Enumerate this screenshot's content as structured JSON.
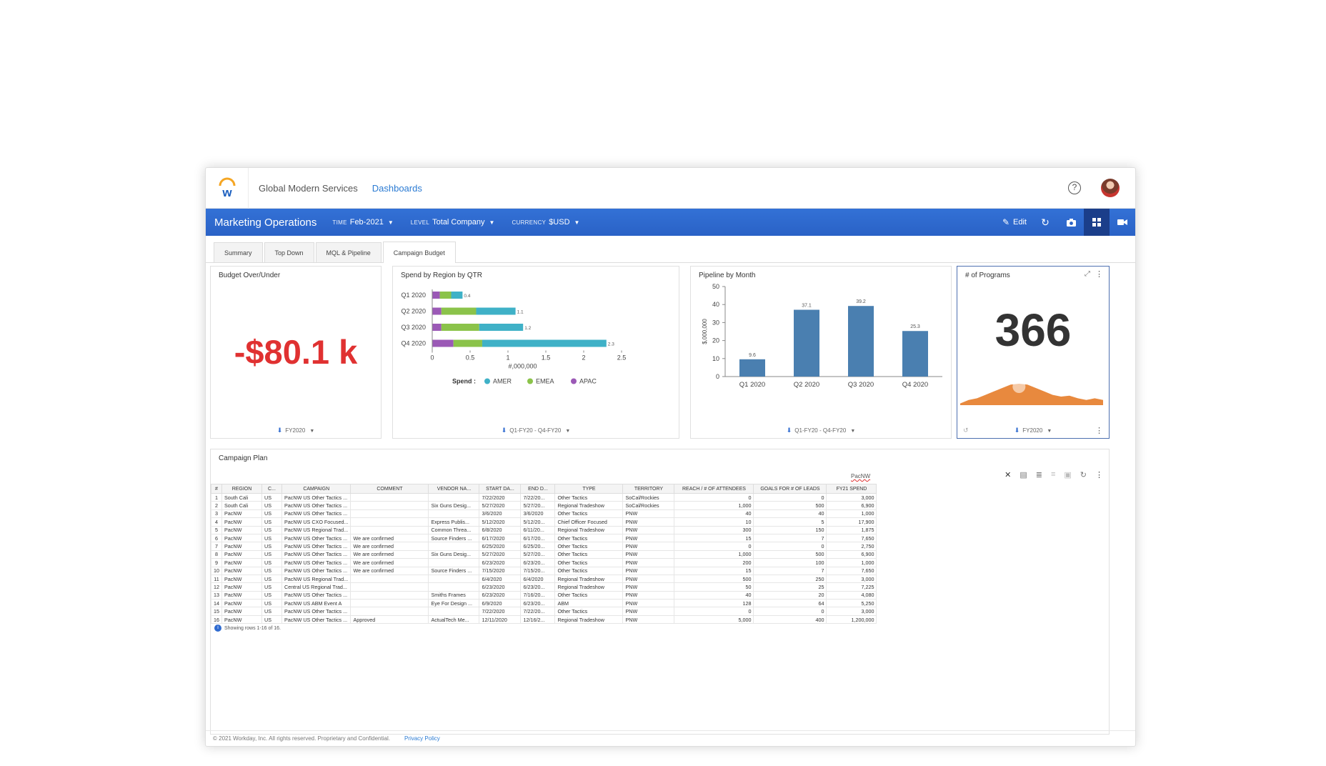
{
  "header": {
    "company": "Global Modern Services",
    "nav_link": "Dashboards",
    "help_glyph": "?"
  },
  "bluebar": {
    "title": "Marketing Operations",
    "filters": [
      {
        "label": "TIME",
        "value": "Feb-2021"
      },
      {
        "label": "LEVEL",
        "value": "Total Company"
      },
      {
        "label": "CURRENCY",
        "value": "$USD"
      }
    ],
    "edit_label": "Edit",
    "accent": "#2f6bd0"
  },
  "tabs": [
    "Summary",
    "Top Down",
    "MQL & Pipeline",
    "Campaign Budget"
  ],
  "budget_card": {
    "title": "Budget Over/Under",
    "value": "-$80.1 k",
    "value_color": "#e03131",
    "filter": "FY2020"
  },
  "spend_card": {
    "title": "Spend by Region by QTR",
    "filter": "Q1-FY20 - Q4-FY20",
    "legend_prefix": "Spend :"
  },
  "pipeline_card": {
    "title": "Pipeline by Month",
    "filter": "Q1-FY20 - Q4-FY20"
  },
  "programs_card": {
    "title": "# of Programs",
    "value": "366",
    "filter": "FY2020"
  },
  "chart_data": [
    {
      "type": "bar",
      "orientation": "horizontal",
      "stacked": true,
      "title": "Spend by Region by QTR",
      "categories": [
        "Q1 2020",
        "Q2 2020",
        "Q3 2020",
        "Q4 2020"
      ],
      "series": [
        {
          "name": "APAC",
          "color": "#9b59b6",
          "values": [
            0.1,
            0.12,
            0.12,
            0.28
          ]
        },
        {
          "name": "EMEA",
          "color": "#8bc34a",
          "values": [
            0.15,
            0.46,
            0.5,
            0.38
          ]
        },
        {
          "name": "AMER",
          "color": "#3fb1c7",
          "values": [
            0.15,
            0.52,
            0.58,
            1.64
          ]
        }
      ],
      "totals": [
        "0.4",
        "1.1",
        "1.2",
        "2.3"
      ],
      "xlabel": "#,000,000",
      "xlim": [
        0,
        2.5
      ],
      "xticks": [
        "0",
        "0.5",
        "1",
        "1.5",
        "2",
        "2.5"
      ],
      "legend": "bottom"
    },
    {
      "type": "bar",
      "title": "Pipeline by Month",
      "categories": [
        "Q1 2020",
        "Q2 2020",
        "Q3 2020",
        "Q4 2020"
      ],
      "values": [
        9.6,
        37.1,
        39.2,
        25.3
      ],
      "labels": [
        "9.6",
        "37.1",
        "39.2",
        "25.3"
      ],
      "ylabel": "$,000,000",
      "ylim": [
        0,
        50
      ],
      "yticks": [
        "0",
        "10",
        "20",
        "30",
        "40",
        "50"
      ],
      "color": "#4a7fb0"
    },
    {
      "type": "area",
      "title": "# of Programs",
      "values": [
        1,
        3,
        4,
        6,
        8,
        10,
        12,
        12.5,
        12,
        10,
        8,
        6,
        5,
        5.5,
        4,
        3,
        4,
        3
      ],
      "color": "#e8893e"
    }
  ],
  "campaign_plan": {
    "title": "Campaign Plan",
    "search_value": "PacNW",
    "columns": [
      "#",
      "REGION",
      "C...",
      "CAMPAIGN",
      "COMMENT",
      "VENDOR NA...",
      "START DA...",
      "END D...",
      "TYPE",
      "TERRITORY",
      "REACH / # OF ATTENDEES",
      "GOALS FOR # OF LEADS",
      "FY21 SPEND"
    ],
    "rows": [
      [
        "1",
        "South Cali",
        "US",
        "PacNW US Other Tactics ...",
        "",
        "",
        "7/22/2020",
        "7/22/20...",
        "Other Tactics",
        "SoCal/Rockies",
        "0",
        "0",
        "3,000"
      ],
      [
        "2",
        "South Cali",
        "US",
        "PacNW US Other Tactics ...",
        "",
        "Six Guns Desig...",
        "5/27/2020",
        "5/27/20...",
        "Regional Tradeshow",
        "SoCal/Rockies",
        "1,000",
        "500",
        "6,900"
      ],
      [
        "3",
        "PacNW",
        "US",
        "PacNW US Other Tactics ...",
        "",
        "",
        "3/6/2020",
        "3/6/2020",
        "Other Tactics",
        "PNW",
        "40",
        "40",
        "1,000"
      ],
      [
        "4",
        "PacNW",
        "US",
        "PacNW US CXO Focused...",
        "",
        "Express Publis...",
        "5/12/2020",
        "5/12/20...",
        "Chief Officer Focused",
        "PNW",
        "10",
        "5",
        "17,900"
      ],
      [
        "5",
        "PacNW",
        "US",
        "PacNW US Regional Trad...",
        "",
        "Common Threa...",
        "6/8/2020",
        "6/11/20...",
        "Regional Tradeshow",
        "PNW",
        "300",
        "150",
        "1,875"
      ],
      [
        "6",
        "PacNW",
        "US",
        "PacNW US Other Tactics ...",
        "We are confirmed",
        "Source Finders ...",
        "6/17/2020",
        "6/17/20...",
        "Other Tactics",
        "PNW",
        "15",
        "7",
        "7,650"
      ],
      [
        "7",
        "PacNW",
        "US",
        "PacNW US Other Tactics ...",
        "We are confirmed",
        "",
        "6/25/2020",
        "6/25/20...",
        "Other Tactics",
        "PNW",
        "0",
        "0",
        "2,750"
      ],
      [
        "8",
        "PacNW",
        "US",
        "PacNW US Other Tactics ...",
        "We are confirmed",
        "Six Guns Desig...",
        "5/27/2020",
        "5/27/20...",
        "Other Tactics",
        "PNW",
        "1,000",
        "500",
        "6,900"
      ],
      [
        "9",
        "PacNW",
        "US",
        "PacNW US Other Tactics ...",
        "We are confirmed",
        "",
        "6/23/2020",
        "6/23/20...",
        "Other Tactics",
        "PNW",
        "200",
        "100",
        "1,000"
      ],
      [
        "10",
        "PacNW",
        "US",
        "PacNW US Other Tactics ...",
        "We are confirmed",
        "Source Finders ...",
        "7/15/2020",
        "7/15/20...",
        "Other Tactics",
        "PNW",
        "15",
        "7",
        "7,650"
      ],
      [
        "11",
        "PacNW",
        "US",
        "PacNW US Regional Trad...",
        "",
        "",
        "6/4/2020",
        "6/4/2020",
        "Regional Tradeshow",
        "PNW",
        "500",
        "250",
        "3,000"
      ],
      [
        "12",
        "PacNW",
        "US",
        "Central US Regional Trad...",
        "",
        "",
        "6/23/2020",
        "6/23/20...",
        "Regional Tradeshow",
        "PNW",
        "50",
        "25",
        "7,225"
      ],
      [
        "13",
        "PacNW",
        "US",
        "PacNW US Other Tactics ...",
        "",
        "Smiths Frames",
        "6/23/2020",
        "7/16/20...",
        "Other Tactics",
        "PNW",
        "40",
        "20",
        "4,080"
      ],
      [
        "14",
        "PacNW",
        "US",
        "PacNW US ABM Event A",
        "",
        "Eye For Design ...",
        "6/9/2020",
        "6/23/20...",
        "ABM",
        "PNW",
        "128",
        "64",
        "5,250"
      ],
      [
        "15",
        "PacNW",
        "US",
        "PacNW US Other Tactics ...",
        "",
        "",
        "7/22/2020",
        "7/22/20...",
        "Other Tactics",
        "PNW",
        "0",
        "0",
        "3,000"
      ],
      [
        "16",
        "PacNW",
        "US",
        "PacNW US Other Tactics ...",
        "Approved",
        "ActualTech Me...",
        "12/11/2020",
        "12/16/2...",
        "Regional Tradeshow",
        "PNW",
        "5,000",
        "400",
        "1,200,000"
      ]
    ],
    "status": "Showing rows 1-16 of 16."
  },
  "footer": {
    "copyright": "© 2021 Workday, Inc. All rights reserved. Proprietary and Confidential.",
    "privacy": "Privacy Policy"
  }
}
